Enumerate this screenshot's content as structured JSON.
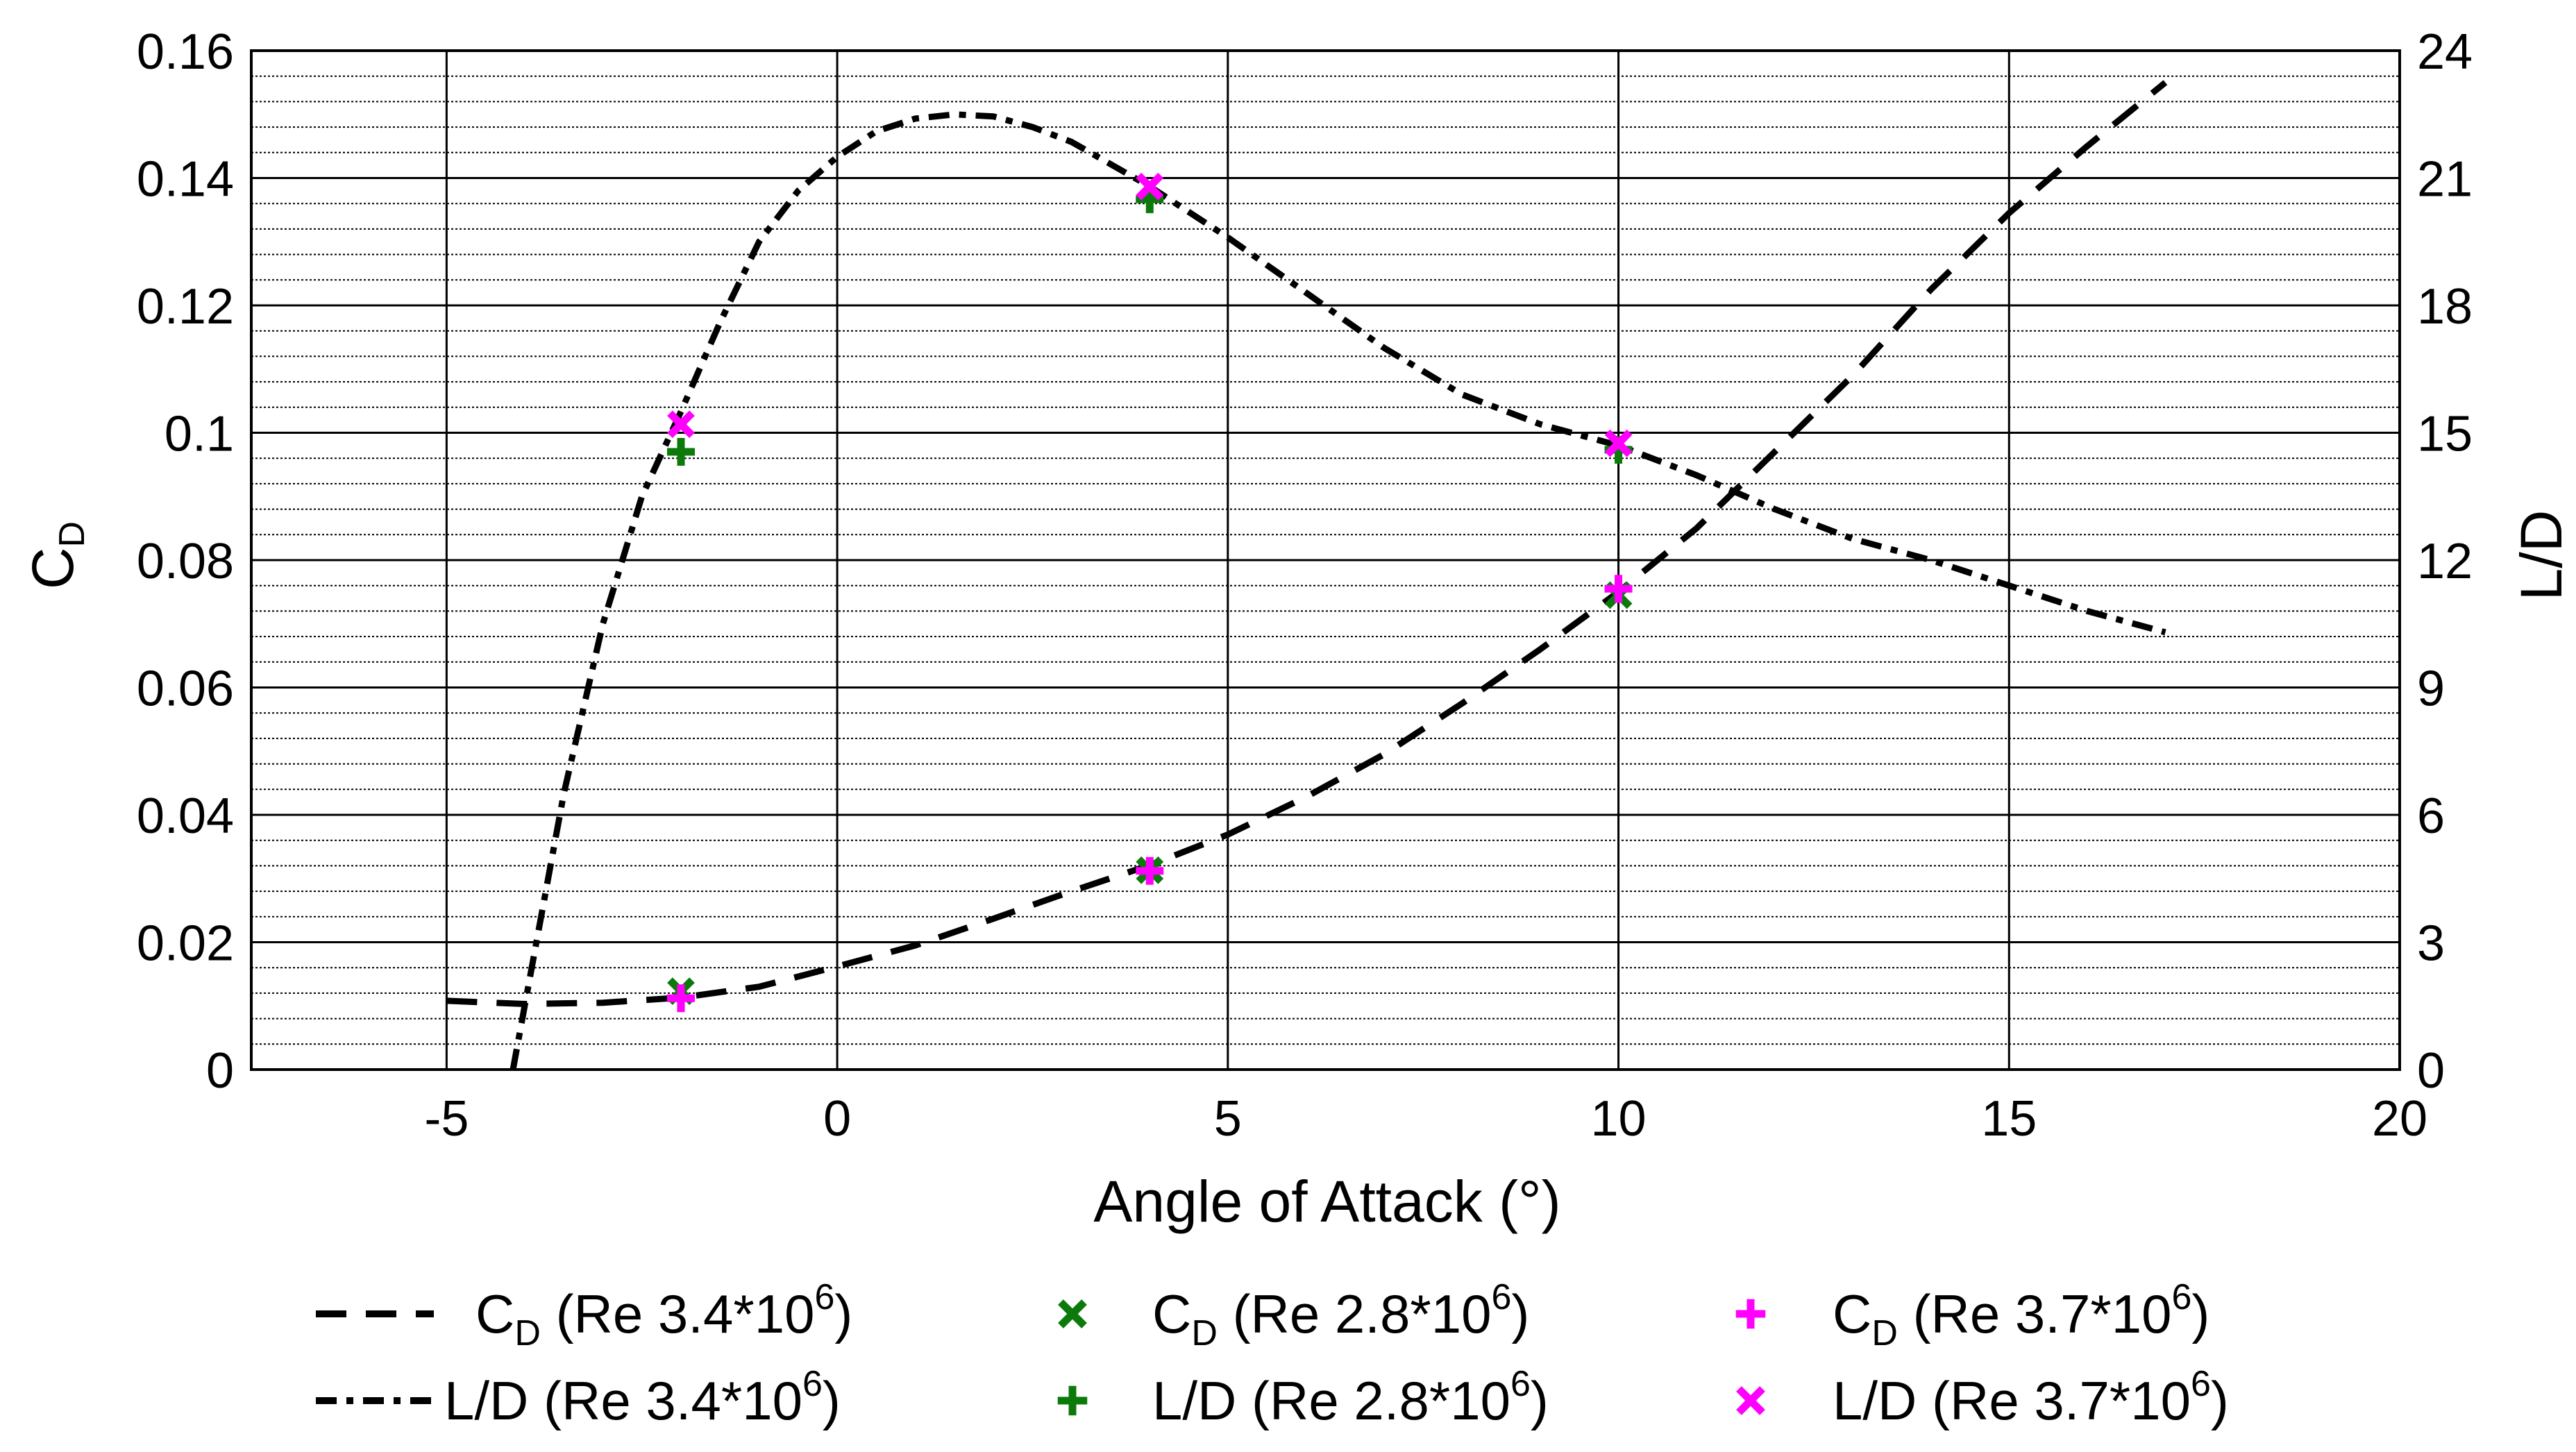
{
  "chart_data": {
    "type": "line",
    "xlabel": "Angle of Attack (°)",
    "ylabel_left": {
      "main": "C",
      "sub": "D"
    },
    "ylabel_right": "L/D",
    "xlim": [
      -7.5,
      20
    ],
    "ylim_left": [
      0,
      0.16
    ],
    "ylim_right": [
      0,
      24
    ],
    "grid": "on",
    "x_ticks": [
      "-5",
      "0",
      "5",
      "10",
      "15",
      "20"
    ],
    "y_left_ticks": [
      "0",
      "0.02",
      "0.04",
      "0.06",
      "0.08",
      "0.1",
      "0.12",
      "0.14",
      "0.16"
    ],
    "y_right_ticks": [
      "0",
      "3",
      "6",
      "9",
      "12",
      "15",
      "18",
      "21",
      "24"
    ],
    "series": [
      {
        "axis": "left",
        "style": "dashed",
        "color": "#000000",
        "legend": {
          "main": "C",
          "sub": "D",
          "rest": " (Re  3.4*10",
          "sup": "6",
          "close": ")"
        },
        "x": [
          -5,
          -4,
          -3,
          -2,
          -1,
          0,
          1,
          2,
          3,
          4,
          5,
          6,
          7,
          8,
          9,
          10,
          11,
          12,
          13,
          14,
          15,
          16,
          17
        ],
        "y": [
          0.0108,
          0.0103,
          0.0105,
          0.0113,
          0.013,
          0.0162,
          0.0195,
          0.0237,
          0.028,
          0.0321,
          0.0369,
          0.0428,
          0.0495,
          0.0575,
          0.066,
          0.075,
          0.085,
          0.097,
          0.109,
          0.1225,
          0.1345,
          0.145,
          0.155
        ]
      },
      {
        "axis": "right",
        "style": "dash-dot",
        "color": "#000000",
        "legend": {
          "main": "L/D",
          "rest": " (Re  3.4*10",
          "sup": "6",
          "close": ")"
        },
        "x": [
          -4.15,
          -3.8,
          -3.5,
          -3.0,
          -2.5,
          -2.0,
          -1.5,
          -1.0,
          -0.5,
          0,
          0.5,
          1.0,
          1.5,
          2.0,
          2.5,
          3.0,
          4.0,
          5.0,
          6.0,
          7.0,
          8.0,
          9.0,
          10.0,
          11.0,
          12.0,
          13.0,
          14.0,
          15.0,
          16.0,
          17.0
        ],
        "y": [
          0.0,
          3.5,
          6.5,
          10.5,
          13.5,
          15.5,
          17.6,
          19.5,
          20.7,
          21.5,
          22.1,
          22.4,
          22.5,
          22.45,
          22.2,
          21.85,
          20.8,
          19.6,
          18.3,
          17.0,
          15.9,
          15.2,
          14.7,
          14.0,
          13.2,
          12.5,
          12.0,
          11.4,
          10.8,
          10.3
        ]
      }
    ],
    "points": [
      {
        "name": "cd-re-2.8",
        "axis": "left",
        "marker": "x",
        "color": "#0b7a0b",
        "x": [
          -2,
          4,
          10
        ],
        "y": [
          0.0123,
          0.0313,
          0.0745
        ],
        "legend": {
          "main": "C",
          "sub": "D",
          "rest": " (Re  2.8*10",
          "sup": "6",
          "close": ")"
        }
      },
      {
        "name": "cd-re-3.7",
        "axis": "left",
        "marker": "plus",
        "color": "#ff00ff",
        "x": [
          -2,
          4,
          10
        ],
        "y": [
          0.0112,
          0.0312,
          0.0755
        ],
        "legend": {
          "main": "C",
          "sub": "D",
          "rest": " (Re  3.7*10",
          "sup": "6",
          "close": ")"
        }
      },
      {
        "name": "ld-re-2.8",
        "axis": "right",
        "marker": "plus",
        "color": "#0b7a0b",
        "x": [
          -2,
          4,
          10
        ],
        "y": [
          14.55,
          20.5,
          14.6
        ],
        "legend": {
          "main": "L/D",
          "rest": " (Re  2.8*10",
          "sup": "6",
          "close": ")"
        }
      },
      {
        "name": "ld-re-3.7",
        "axis": "right",
        "marker": "x",
        "color": "#ff00ff",
        "x": [
          -2,
          4,
          10
        ],
        "y": [
          15.2,
          20.8,
          14.75
        ],
        "legend": {
          "main": "L/D",
          "rest": " (Re  3.7*10",
          "sup": "6",
          "close": ")"
        }
      }
    ]
  }
}
